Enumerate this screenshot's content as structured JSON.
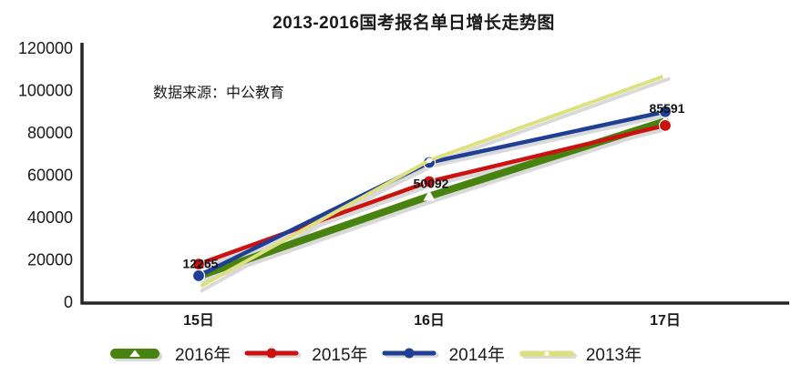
{
  "chart_data": {
    "type": "line",
    "title": "2013-2016国考报名单日增长走势图",
    "annotation": "数据来源：中公教育",
    "categories": [
      "15日",
      "16日",
      "17日"
    ],
    "ylim": [
      0,
      120000
    ],
    "ytick_labels": [
      "0",
      "20000",
      "40000",
      "60000",
      "80000",
      "100000",
      "120000"
    ],
    "grid": false,
    "legend_position": "bottom",
    "axis_color": "#262626",
    "text_color": "#1a1a1a",
    "shadow_color": "#d9d9d9",
    "series": [
      {
        "name": "2016年",
        "color": "#47830e",
        "width": 8,
        "marker": "triangle",
        "values": [
          12265,
          50092,
          85591
        ],
        "point_labels": [
          "12265",
          "50092",
          "85591"
        ]
      },
      {
        "name": "2015年",
        "color": "#cc1111",
        "width": 4.5,
        "marker": "dot",
        "values": [
          18000,
          57000,
          83500
        ]
      },
      {
        "name": "2014年",
        "color": "#1f3f96",
        "width": 4.5,
        "marker": "dot",
        "values": [
          12500,
          66000,
          90000
        ]
      },
      {
        "name": "2013年",
        "color": "#dde07f",
        "width": 4,
        "marker": "white-dot",
        "values": [
          7000,
          67000,
          107000
        ]
      }
    ]
  }
}
